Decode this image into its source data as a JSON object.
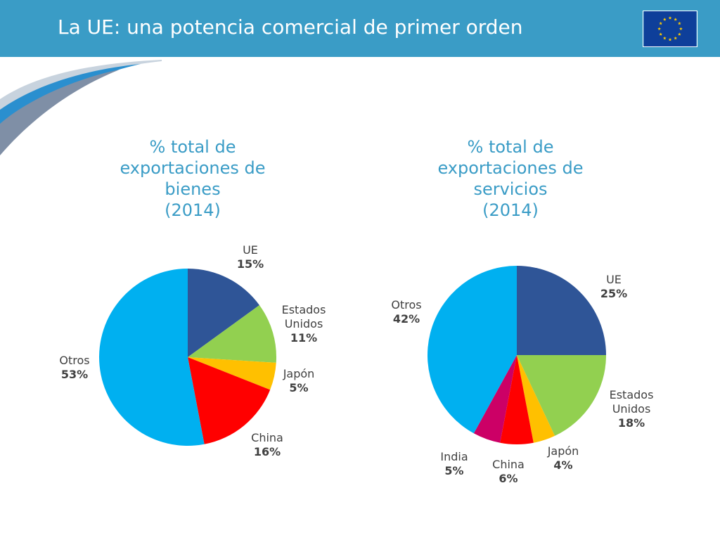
{
  "header": {
    "title": "La UE: una potencia comercial de primer orden",
    "flag_color": "#0e3f9a",
    "star_color": "#ffcc00",
    "flag_icon": "eu-flag-icon"
  },
  "colors": {
    "header_bg": "#3a9cc6",
    "title_text": "#3a9cc6"
  },
  "chart_data": [
    {
      "type": "pie",
      "title_lines": [
        "% total de",
        "exportaciones de",
        "bienes",
        "(2014)"
      ],
      "slices": [
        {
          "name_lines": [
            "UE"
          ],
          "value": 15,
          "label": "15%",
          "color": "#2f5597"
        },
        {
          "name_lines": [
            "Estados",
            "Unidos"
          ],
          "value": 11,
          "label": "11%",
          "color": "#92d050"
        },
        {
          "name_lines": [
            "Japón"
          ],
          "value": 5,
          "label": "5%",
          "color": "#ffc000"
        },
        {
          "name_lines": [
            "China"
          ],
          "value": 16,
          "label": "16%",
          "color": "#ff0000"
        },
        {
          "name_lines": [
            "Otros"
          ],
          "value": 53,
          "label": "53%",
          "color": "#00b0f0"
        }
      ]
    },
    {
      "type": "pie",
      "title_lines": [
        "% total de",
        "exportaciones de",
        "servicios",
        "(2014)"
      ],
      "slices": [
        {
          "name_lines": [
            "UE"
          ],
          "value": 25,
          "label": "25%",
          "color": "#2f5597"
        },
        {
          "name_lines": [
            "Estados",
            "Unidos"
          ],
          "value": 18,
          "label": "18%",
          "color": "#92d050"
        },
        {
          "name_lines": [
            "Japón"
          ],
          "value": 4,
          "label": "4%",
          "color": "#ffc000"
        },
        {
          "name_lines": [
            "China"
          ],
          "value": 6,
          "label": "6%",
          "color": "#ff0000"
        },
        {
          "name_lines": [
            "India"
          ],
          "value": 5,
          "label": "5%",
          "color": "#cc0066"
        },
        {
          "name_lines": [
            "Otros"
          ],
          "value": 42,
          "label": "42%",
          "color": "#00b0f0"
        }
      ]
    }
  ]
}
